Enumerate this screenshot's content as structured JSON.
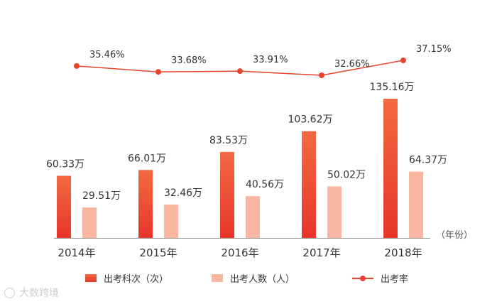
{
  "chart_data": {
    "type": "bar",
    "categories": [
      "2014年",
      "2015年",
      "2016年",
      "2017年",
      "2018年"
    ],
    "x_unit_label": "（年份）",
    "ylim": [
      0,
      160
    ],
    "series": [
      {
        "name": "出考科次（次）",
        "type": "bar",
        "values": [
          60.33,
          66.01,
          83.53,
          103.62,
          135.16
        ],
        "labels": [
          "60.33万",
          "66.01万",
          "83.53万",
          "103.62万",
          "135.16万"
        ]
      },
      {
        "name": "出考人数（人）",
        "type": "bar",
        "values": [
          29.51,
          32.46,
          40.56,
          50.02,
          64.37
        ],
        "labels": [
          "29.51万",
          "32.46万",
          "40.56万",
          "50.02万",
          "64.37万"
        ]
      },
      {
        "name": "出考率",
        "type": "line",
        "values": [
          35.46,
          33.68,
          33.91,
          32.66,
          37.15
        ],
        "labels": [
          "35.46%",
          "33.68%",
          "33.91%",
          "32.66%",
          "37.15%"
        ]
      }
    ],
    "colors": {
      "bar1_top": "#f26a42",
      "bar1_bottom": "#e8352a",
      "bar2": "#f8b5a0",
      "line": "#e8432b",
      "axis": "#999999"
    },
    "legend_position": "bottom"
  },
  "watermark": {
    "text": "大数跨境",
    "icon": "brand-logo-icon"
  }
}
